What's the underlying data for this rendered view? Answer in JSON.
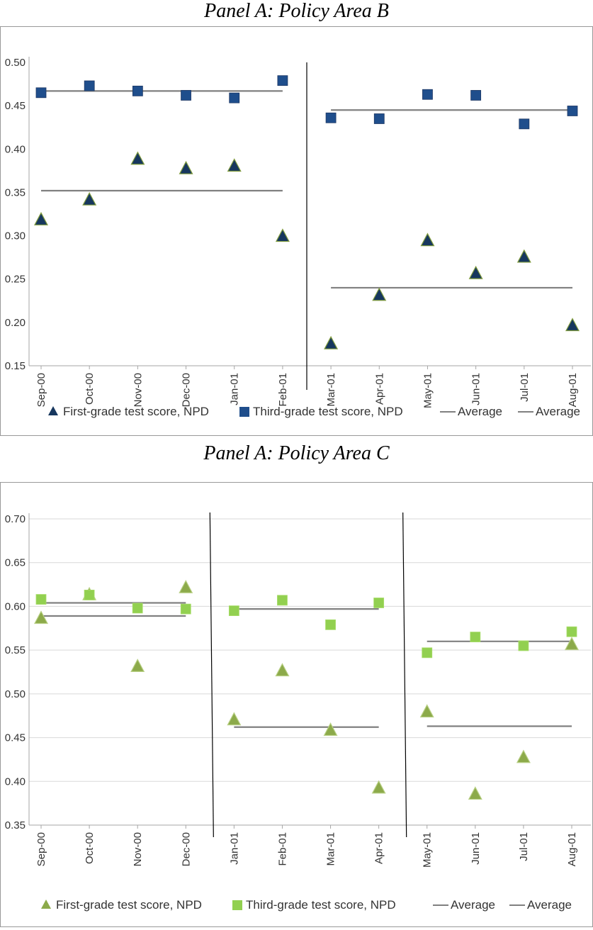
{
  "panel_titles": {
    "b": "Panel A: Policy Area B",
    "c": "Panel A: Policy Area C"
  },
  "colors": {
    "b_triangle": "#17375e",
    "b_square": "#1f4e8c",
    "c_triangle": "#8caa4a",
    "c_square": "#92d050",
    "average_line": "#808080",
    "grid": "#d9d9d9",
    "divider": "#000000"
  },
  "chart_data": [
    {
      "type": "scatter",
      "title": "Panel A: Policy Area B",
      "categories": [
        "Sep-00",
        "Oct-00",
        "Nov-00",
        "Dec-00",
        "Jan-01",
        "Feb-01",
        "Mar-01",
        "Apr-01",
        "May-01",
        "Jun-01",
        "Jul-01",
        "Aug-01"
      ],
      "ylim": [
        0.15,
        0.5
      ],
      "yticks": [
        "0.15",
        "0.20",
        "0.25",
        "0.30",
        "0.35",
        "0.40",
        "0.45",
        "0.50"
      ],
      "grid": false,
      "legend_placement": "bottom",
      "series": [
        {
          "name": "First-grade test score, NPD",
          "marker": "triangle",
          "values": [
            0.319,
            0.342,
            0.389,
            0.378,
            0.381,
            0.3,
            0.176,
            0.232,
            0.295,
            0.257,
            0.276,
            0.197
          ]
        },
        {
          "name": "Third-grade test score, NPD",
          "marker": "square",
          "values": [
            0.465,
            0.473,
            0.467,
            0.462,
            0.459,
            0.479,
            0.436,
            0.435,
            0.463,
            0.462,
            0.429,
            0.444
          ]
        }
      ],
      "averages": [
        {
          "name": "Average",
          "from": 0,
          "to": 5,
          "value": 0.467
        },
        {
          "name": "Average",
          "from": 0,
          "to": 5,
          "value": 0.352
        },
        {
          "name": "Average",
          "from": 6,
          "to": 11,
          "value": 0.445
        },
        {
          "name": "Average",
          "from": 6,
          "to": 11,
          "value": 0.24
        }
      ],
      "dividers": [
        5.5
      ]
    },
    {
      "type": "scatter",
      "title": "Panel A: Policy Area C",
      "categories": [
        "Sep-00",
        "Oct-00",
        "Nov-00",
        "Dec-00",
        "Jan-01",
        "Feb-01",
        "Mar-01",
        "Apr-01",
        "May-01",
        "Jun-01",
        "Jul-01",
        "Aug-01"
      ],
      "ylim": [
        0.35,
        0.7
      ],
      "yticks": [
        "0.35",
        "0.40",
        "0.45",
        "0.50",
        "0.55",
        "0.60",
        "0.65",
        "0.70"
      ],
      "grid": true,
      "legend_placement": "bottom",
      "series": [
        {
          "name": "First-grade test score, NPD",
          "marker": "triangle",
          "values": [
            0.587,
            0.614,
            0.532,
            0.622,
            0.471,
            0.527,
            0.459,
            0.393,
            0.48,
            0.386,
            0.428,
            0.557
          ]
        },
        {
          "name": "Third-grade test score, NPD",
          "marker": "square",
          "values": [
            0.608,
            0.613,
            0.598,
            0.597,
            0.595,
            0.607,
            0.579,
            0.604,
            0.547,
            0.565,
            0.555,
            0.571
          ]
        }
      ],
      "averages": [
        {
          "name": "Average",
          "from": 0,
          "to": 3,
          "value": 0.604
        },
        {
          "name": "Average",
          "from": 0,
          "to": 3,
          "value": 0.589
        },
        {
          "name": "Average",
          "from": 4,
          "to": 7,
          "value": 0.597
        },
        {
          "name": "Average",
          "from": 4,
          "to": 7,
          "value": 0.462
        },
        {
          "name": "Average",
          "from": 8,
          "to": 11,
          "value": 0.56
        },
        {
          "name": "Average",
          "from": 8,
          "to": 11,
          "value": 0.463
        }
      ],
      "dividers": [
        3.5,
        7.5
      ]
    }
  ],
  "legend": {
    "first_grade": "First-grade test score, NPD",
    "third_grade": "Third-grade test score, NPD",
    "average_1": "Average",
    "average_2": "Average"
  }
}
